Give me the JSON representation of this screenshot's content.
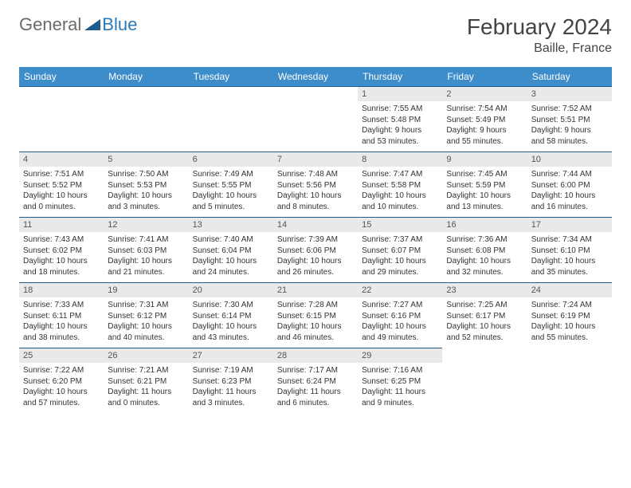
{
  "logo": {
    "general": "General",
    "blue": "Blue"
  },
  "title": "February 2024",
  "subtitle": "Baille, France",
  "colors": {
    "header_bg": "#3c8dca",
    "row_border": "#1e5a8a",
    "daynum_bg": "#e9e9e9",
    "logo_gray": "#6b6b6b",
    "logo_blue": "#2a7ab8",
    "text": "#333333",
    "title": "#444444",
    "background": "#ffffff"
  },
  "weekdays": [
    "Sunday",
    "Monday",
    "Tuesday",
    "Wednesday",
    "Thursday",
    "Friday",
    "Saturday"
  ],
  "grid": [
    [
      null,
      null,
      null,
      null,
      {
        "n": "1",
        "sunrise": "Sunrise: 7:55 AM",
        "sunset": "Sunset: 5:48 PM",
        "day1": "Daylight: 9 hours",
        "day2": "and 53 minutes."
      },
      {
        "n": "2",
        "sunrise": "Sunrise: 7:54 AM",
        "sunset": "Sunset: 5:49 PM",
        "day1": "Daylight: 9 hours",
        "day2": "and 55 minutes."
      },
      {
        "n": "3",
        "sunrise": "Sunrise: 7:52 AM",
        "sunset": "Sunset: 5:51 PM",
        "day1": "Daylight: 9 hours",
        "day2": "and 58 minutes."
      }
    ],
    [
      {
        "n": "4",
        "sunrise": "Sunrise: 7:51 AM",
        "sunset": "Sunset: 5:52 PM",
        "day1": "Daylight: 10 hours",
        "day2": "and 0 minutes."
      },
      {
        "n": "5",
        "sunrise": "Sunrise: 7:50 AM",
        "sunset": "Sunset: 5:53 PM",
        "day1": "Daylight: 10 hours",
        "day2": "and 3 minutes."
      },
      {
        "n": "6",
        "sunrise": "Sunrise: 7:49 AM",
        "sunset": "Sunset: 5:55 PM",
        "day1": "Daylight: 10 hours",
        "day2": "and 5 minutes."
      },
      {
        "n": "7",
        "sunrise": "Sunrise: 7:48 AM",
        "sunset": "Sunset: 5:56 PM",
        "day1": "Daylight: 10 hours",
        "day2": "and 8 minutes."
      },
      {
        "n": "8",
        "sunrise": "Sunrise: 7:47 AM",
        "sunset": "Sunset: 5:58 PM",
        "day1": "Daylight: 10 hours",
        "day2": "and 10 minutes."
      },
      {
        "n": "9",
        "sunrise": "Sunrise: 7:45 AM",
        "sunset": "Sunset: 5:59 PM",
        "day1": "Daylight: 10 hours",
        "day2": "and 13 minutes."
      },
      {
        "n": "10",
        "sunrise": "Sunrise: 7:44 AM",
        "sunset": "Sunset: 6:00 PM",
        "day1": "Daylight: 10 hours",
        "day2": "and 16 minutes."
      }
    ],
    [
      {
        "n": "11",
        "sunrise": "Sunrise: 7:43 AM",
        "sunset": "Sunset: 6:02 PM",
        "day1": "Daylight: 10 hours",
        "day2": "and 18 minutes."
      },
      {
        "n": "12",
        "sunrise": "Sunrise: 7:41 AM",
        "sunset": "Sunset: 6:03 PM",
        "day1": "Daylight: 10 hours",
        "day2": "and 21 minutes."
      },
      {
        "n": "13",
        "sunrise": "Sunrise: 7:40 AM",
        "sunset": "Sunset: 6:04 PM",
        "day1": "Daylight: 10 hours",
        "day2": "and 24 minutes."
      },
      {
        "n": "14",
        "sunrise": "Sunrise: 7:39 AM",
        "sunset": "Sunset: 6:06 PM",
        "day1": "Daylight: 10 hours",
        "day2": "and 26 minutes."
      },
      {
        "n": "15",
        "sunrise": "Sunrise: 7:37 AM",
        "sunset": "Sunset: 6:07 PM",
        "day1": "Daylight: 10 hours",
        "day2": "and 29 minutes."
      },
      {
        "n": "16",
        "sunrise": "Sunrise: 7:36 AM",
        "sunset": "Sunset: 6:08 PM",
        "day1": "Daylight: 10 hours",
        "day2": "and 32 minutes."
      },
      {
        "n": "17",
        "sunrise": "Sunrise: 7:34 AM",
        "sunset": "Sunset: 6:10 PM",
        "day1": "Daylight: 10 hours",
        "day2": "and 35 minutes."
      }
    ],
    [
      {
        "n": "18",
        "sunrise": "Sunrise: 7:33 AM",
        "sunset": "Sunset: 6:11 PM",
        "day1": "Daylight: 10 hours",
        "day2": "and 38 minutes."
      },
      {
        "n": "19",
        "sunrise": "Sunrise: 7:31 AM",
        "sunset": "Sunset: 6:12 PM",
        "day1": "Daylight: 10 hours",
        "day2": "and 40 minutes."
      },
      {
        "n": "20",
        "sunrise": "Sunrise: 7:30 AM",
        "sunset": "Sunset: 6:14 PM",
        "day1": "Daylight: 10 hours",
        "day2": "and 43 minutes."
      },
      {
        "n": "21",
        "sunrise": "Sunrise: 7:28 AM",
        "sunset": "Sunset: 6:15 PM",
        "day1": "Daylight: 10 hours",
        "day2": "and 46 minutes."
      },
      {
        "n": "22",
        "sunrise": "Sunrise: 7:27 AM",
        "sunset": "Sunset: 6:16 PM",
        "day1": "Daylight: 10 hours",
        "day2": "and 49 minutes."
      },
      {
        "n": "23",
        "sunrise": "Sunrise: 7:25 AM",
        "sunset": "Sunset: 6:17 PM",
        "day1": "Daylight: 10 hours",
        "day2": "and 52 minutes."
      },
      {
        "n": "24",
        "sunrise": "Sunrise: 7:24 AM",
        "sunset": "Sunset: 6:19 PM",
        "day1": "Daylight: 10 hours",
        "day2": "and 55 minutes."
      }
    ],
    [
      {
        "n": "25",
        "sunrise": "Sunrise: 7:22 AM",
        "sunset": "Sunset: 6:20 PM",
        "day1": "Daylight: 10 hours",
        "day2": "and 57 minutes."
      },
      {
        "n": "26",
        "sunrise": "Sunrise: 7:21 AM",
        "sunset": "Sunset: 6:21 PM",
        "day1": "Daylight: 11 hours",
        "day2": "and 0 minutes."
      },
      {
        "n": "27",
        "sunrise": "Sunrise: 7:19 AM",
        "sunset": "Sunset: 6:23 PM",
        "day1": "Daylight: 11 hours",
        "day2": "and 3 minutes."
      },
      {
        "n": "28",
        "sunrise": "Sunrise: 7:17 AM",
        "sunset": "Sunset: 6:24 PM",
        "day1": "Daylight: 11 hours",
        "day2": "and 6 minutes."
      },
      {
        "n": "29",
        "sunrise": "Sunrise: 7:16 AM",
        "sunset": "Sunset: 6:25 PM",
        "day1": "Daylight: 11 hours",
        "day2": "and 9 minutes."
      },
      null,
      null
    ]
  ]
}
